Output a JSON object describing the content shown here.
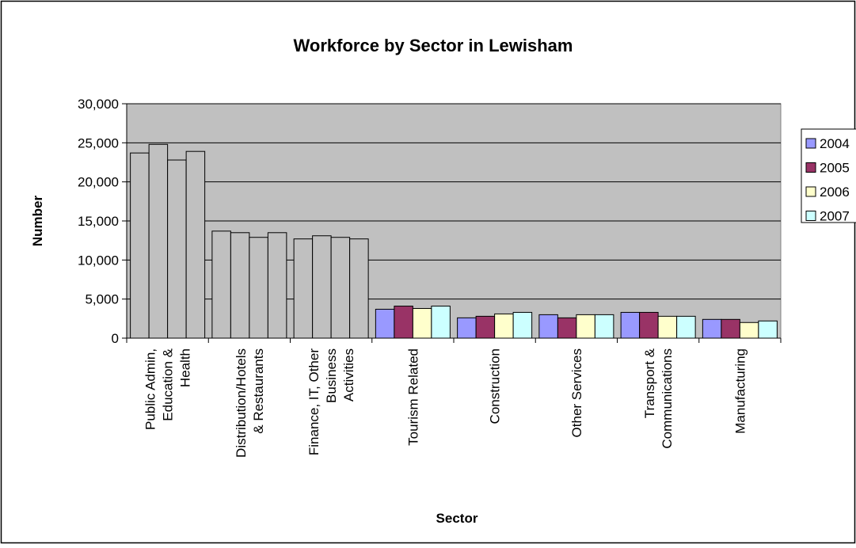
{
  "chart_data": {
    "type": "bar",
    "title": "Workforce by Sector in Lewisham",
    "xlabel": "Sector",
    "ylabel": "Number",
    "ylim": [
      0,
      30000
    ],
    "yticks": [
      0,
      5000,
      10000,
      15000,
      20000,
      25000,
      30000
    ],
    "ytick_labels": [
      "0",
      "5,000",
      "10,000",
      "15,000",
      "20,000",
      "25,000",
      "30,000"
    ],
    "grid": true,
    "legend_position": "right",
    "categories": [
      [
        "Public Admin,",
        "Education &",
        "Health"
      ],
      [
        "Distribution/Hotels",
        "& Restaurants"
      ],
      [
        "Finance, IT, Other",
        "Business",
        "Activities"
      ],
      [
        "Tourism Related"
      ],
      [
        "Construction"
      ],
      [
        "Other Services"
      ],
      [
        "Transport &",
        "Communications"
      ],
      [
        "Manufacturing"
      ]
    ],
    "series": [
      {
        "name": "2004",
        "color": "#9999ff",
        "values": [
          23700,
          13700,
          12700,
          3700,
          2600,
          3000,
          3300,
          2400
        ]
      },
      {
        "name": "2005",
        "color": "#993366",
        "values": [
          24800,
          13500,
          13100,
          4100,
          2800,
          2600,
          3300,
          2400
        ]
      },
      {
        "name": "2006",
        "color": "#ffffcc",
        "values": [
          22800,
          12900,
          12900,
          3800,
          3100,
          3000,
          2800,
          2000
        ]
      },
      {
        "name": "2007",
        "color": "#ccffff",
        "values": [
          23900,
          13500,
          12700,
          4100,
          3300,
          3000,
          2800,
          2200
        ]
      }
    ],
    "uncolored_categories": [
      0,
      1,
      2
    ],
    "plot_background": "#c0c0c0"
  }
}
